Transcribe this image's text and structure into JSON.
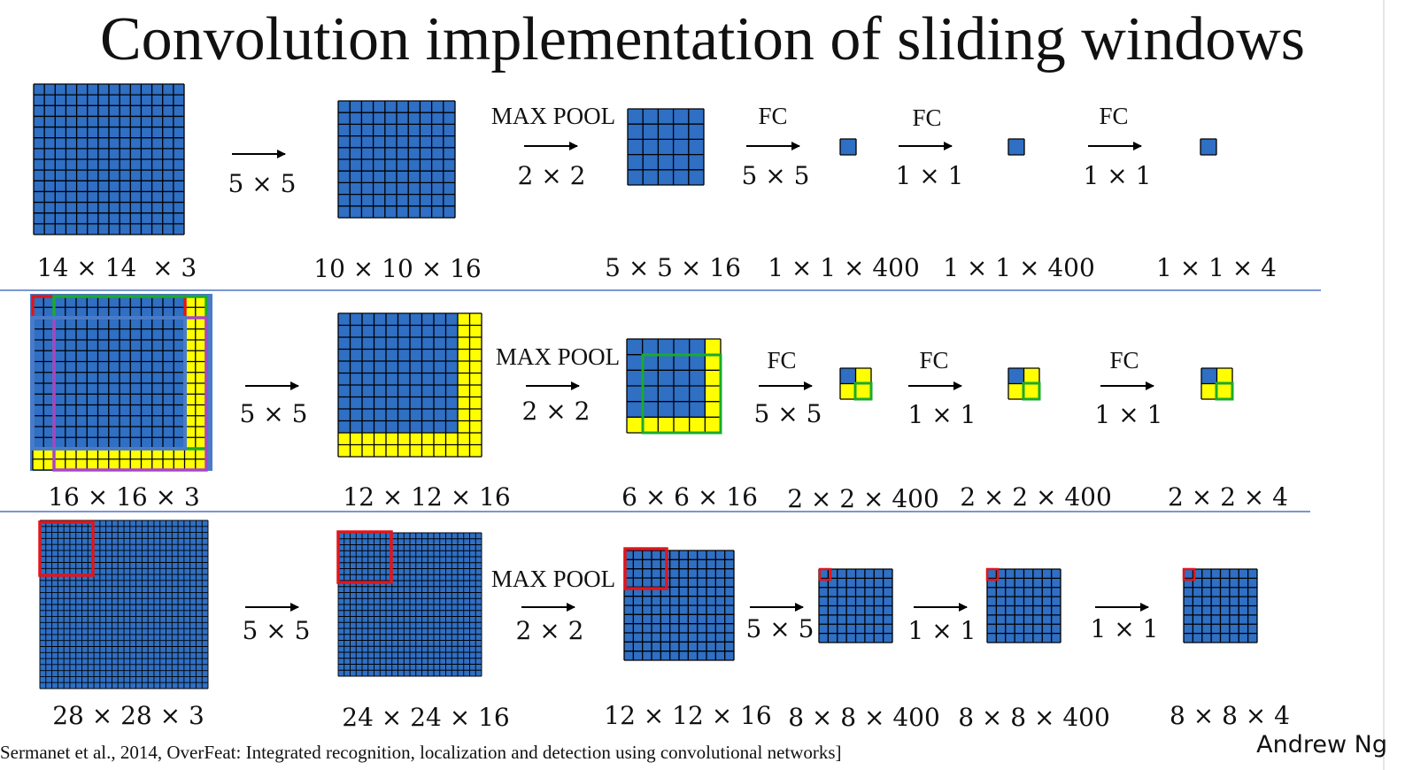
{
  "title": "Convolution implementation of sliding windows",
  "colors": {
    "cell": "#2f6fc4",
    "grid": "#000000",
    "padding": "#ffff00",
    "window_red": "#e0161b",
    "window_green": "#1aab2c",
    "window_purple": "#a844c8",
    "divider": "#4f75c0"
  },
  "rows": [
    {
      "stages": [
        {
          "label": "14 × 14  × 3",
          "cells": 14
        },
        {
          "label": "10 × 10 × 16",
          "cells": 10
        },
        {
          "label": "5 × 5 × 16",
          "cells": 5
        },
        {
          "label": "1 × 1 × 400",
          "cells": 1
        },
        {
          "label": "1 × 1 × 400",
          "cells": 1
        },
        {
          "label": "1 × 1 × 4",
          "cells": 1
        }
      ],
      "ops": [
        {
          "top": "",
          "bottom": "5 × 5"
        },
        {
          "top": "MAX POOL",
          "bottom": "2 × 2"
        },
        {
          "top": "FC",
          "bottom": "5 × 5"
        },
        {
          "top": "FC",
          "bottom": "1 × 1"
        },
        {
          "top": "FC",
          "bottom": "1 × 1"
        }
      ]
    },
    {
      "stages": [
        {
          "label": "16 × 16 × 3",
          "cells": 16,
          "padding_cells": 2
        },
        {
          "label": "12 × 12 × 16",
          "cells": 12,
          "padding_cells": 2
        },
        {
          "label": "6 × 6 × 16",
          "cells": 6,
          "padding_cells": 1
        },
        {
          "label": "2 × 2 × 400",
          "cells": 2,
          "padding_cells": 1
        },
        {
          "label": "2 × 2 × 400",
          "cells": 2,
          "padding_cells": 1
        },
        {
          "label": "2 × 2 × 4",
          "cells": 2,
          "padding_cells": 1
        }
      ],
      "ops": [
        {
          "top": "",
          "bottom": "5 × 5"
        },
        {
          "top": "MAX POOL",
          "bottom": "2 × 2"
        },
        {
          "top": "FC",
          "bottom": "5 × 5"
        },
        {
          "top": "FC",
          "bottom": "1 × 1"
        },
        {
          "top": "FC",
          "bottom": "1 × 1"
        }
      ]
    },
    {
      "stages": [
        {
          "label": "28 × 28 × 3",
          "cells": 28
        },
        {
          "label": "24 × 24 × 16",
          "cells": 24
        },
        {
          "label": "12 × 12 × 16",
          "cells": 12
        },
        {
          "label": "8 × 8 × 400",
          "cells": 8
        },
        {
          "label": "8 × 8 × 400",
          "cells": 8
        },
        {
          "label": "8 × 8 × 4",
          "cells": 8
        }
      ],
      "ops": [
        {
          "top": "",
          "bottom": "5 × 5"
        },
        {
          "top": "MAX POOL",
          "bottom": "2 × 2"
        },
        {
          "top": "",
          "bottom": "5 × 5"
        },
        {
          "top": "",
          "bottom": "1 × 1"
        },
        {
          "top": "",
          "bottom": "1 × 1"
        }
      ]
    }
  ],
  "citation": "Sermanet et al., 2014, OverFeat: Integrated recognition, localization and detection using convolutional networks]",
  "author": "Andrew Ng"
}
